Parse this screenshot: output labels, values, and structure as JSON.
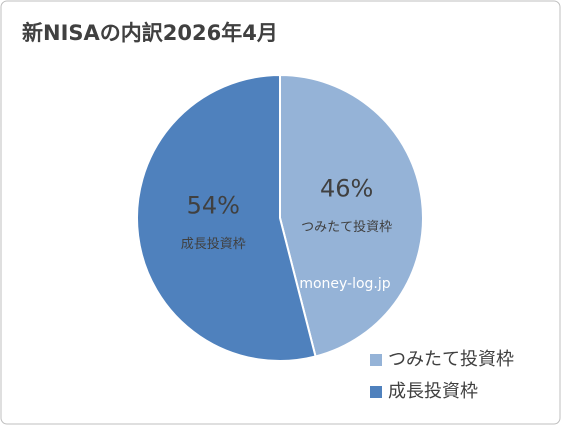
{
  "chart_data": {
    "type": "pie",
    "title": "新NISAの内訳2026年4月",
    "categories": [
      "つみたて投資枠",
      "成長投資枠"
    ],
    "values": [
      46,
      54
    ],
    "value_labels": [
      "46%",
      "54%"
    ],
    "colors": [
      "#95b3d7",
      "#4f81bd"
    ],
    "watermark": "money-log.jp",
    "legend": "bottom-right"
  }
}
